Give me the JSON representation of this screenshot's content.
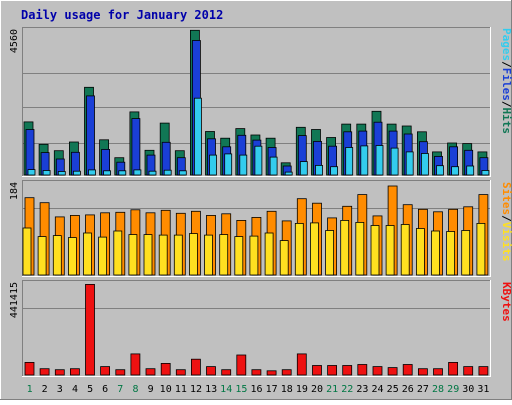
{
  "chart_data": {
    "type": "bar",
    "title": "Daily usage for January 2012",
    "categories": [
      "1",
      "2",
      "3",
      "4",
      "5",
      "6",
      "7",
      "8",
      "9",
      "10",
      "11",
      "12",
      "13",
      "14",
      "15",
      "16",
      "17",
      "18",
      "19",
      "20",
      "21",
      "22",
      "23",
      "24",
      "25",
      "26",
      "27",
      "28",
      "29",
      "30",
      "31"
    ],
    "weekend_days": [
      "1",
      "7",
      "8",
      "14",
      "15",
      "21",
      "22",
      "28",
      "29"
    ],
    "panels": [
      {
        "id": "hits",
        "ymax": 4560,
        "ytick_label": "4560",
        "legend": [
          "Pages",
          "Files",
          "Hits"
        ],
        "series": [
          {
            "name": "Hits",
            "color": "#117755",
            "values": [
              1660,
              960,
              760,
              1030,
              2740,
              1100,
              540,
              1970,
              770,
              1620,
              760,
              4520,
              1360,
              1150,
              1450,
              1250,
              1150,
              380,
              1490,
              1420,
              1170,
              1590,
              1590,
              1990,
              1590,
              1530,
              1350,
              720,
              1000,
              980,
              720
            ]
          },
          {
            "name": "Files",
            "color": "#1a3fd6",
            "values": [
              1420,
              700,
              500,
              710,
              2470,
              800,
              400,
              1760,
              620,
              1020,
              540,
              4200,
              1130,
              880,
              1240,
              1090,
              860,
              280,
              1230,
              1050,
              900,
              1350,
              1370,
              1650,
              1370,
              1280,
              1040,
              580,
              880,
              770,
              540
            ]
          },
          {
            "name": "Pages",
            "color": "#33ccee",
            "values": [
              170,
              140,
              110,
              120,
              160,
              130,
              130,
              160,
              120,
              150,
              130,
              2400,
              620,
              660,
              620,
              900,
              560,
              90,
              420,
              300,
              260,
              860,
              910,
              920,
              840,
              720,
              670,
              290,
              260,
              280,
              140
            ]
          }
        ]
      },
      {
        "id": "visits",
        "ymax": 184,
        "ytick_label": "184",
        "legend": [
          "Sites",
          "Visits"
        ],
        "series": [
          {
            "name": "Sites",
            "color": "#ff8c00",
            "values": [
              153,
              143,
              115,
              118,
              119,
              123,
              124,
              129,
              123,
              128,
              122,
              126,
              118,
              121,
              108,
              114,
              126,
              107,
              151,
              142,
              113,
              136,
              159,
              117,
              176,
              139,
              130,
              125,
              130,
              135,
              159
            ]
          },
          {
            "name": "Visits",
            "color": "#ffe020",
            "values": [
              93,
              76,
              78,
              74,
              83,
              75,
              87,
              80,
              80,
              79,
              79,
              82,
              79,
              80,
              76,
              77,
              83,
              68,
              102,
              103,
              88,
              108,
              104,
              98,
              98,
              100,
              92,
              87,
              86,
              88,
              102
            ]
          }
        ]
      },
      {
        "id": "kbytes",
        "ymax": 441415,
        "ytick_label": "441415",
        "legend": [
          "KBytes"
        ],
        "series": [
          {
            "name": "KBytes",
            "color": "#ee1111",
            "values": [
              60000,
              30000,
              25000,
              30000,
              430000,
              40000,
              25000,
              100000,
              30000,
              55000,
              25000,
              75000,
              40000,
              25000,
              95000,
              25000,
              20000,
              25000,
              100000,
              45000,
              45000,
              45000,
              50000,
              40000,
              35000,
              50000,
              30000,
              30000,
              60000,
              40000,
              40000
            ]
          }
        ]
      }
    ]
  }
}
